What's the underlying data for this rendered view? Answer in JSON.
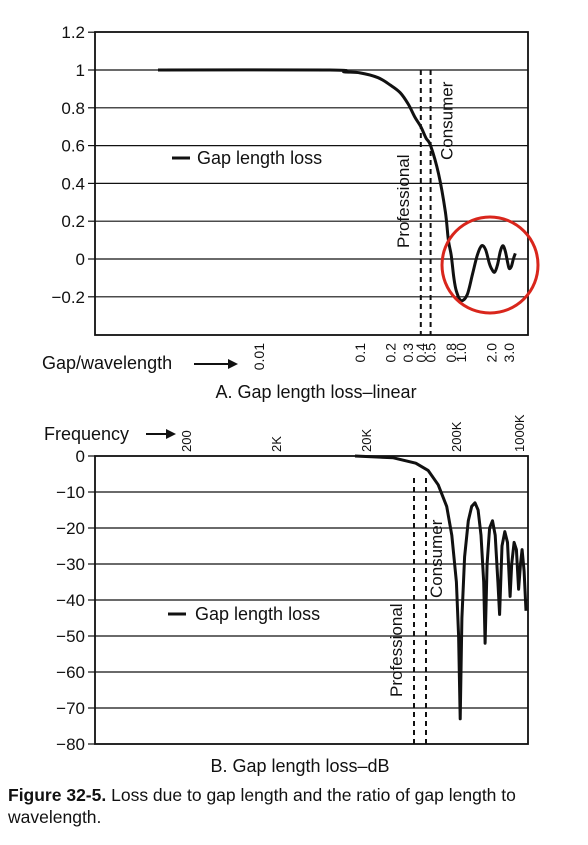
{
  "chart_data": [
    {
      "type": "line",
      "title": "",
      "subtitle": "A. Gap length loss–linear",
      "xlabel": "Gap/wavelength",
      "ylabel": "",
      "x_scale": "log",
      "x_ticks": [
        "0.01",
        "0.1",
        "0.2",
        "0.3",
        "0.4",
        "0.5",
        "0.8",
        "1.0",
        "2.0",
        "3.0"
      ],
      "y_ticks": [
        "1.2",
        "1",
        "0.8",
        "0.6",
        "0.4",
        "0.2",
        "0",
        "−0.2"
      ],
      "ylim": [
        -0.4,
        1.2
      ],
      "grid": "horizontal",
      "legend": "center-left",
      "series": [
        {
          "name": "Gap length loss",
          "points": [
            [
              0.001,
              1.0
            ],
            [
              0.05,
              1.0
            ],
            [
              0.07,
              0.99
            ],
            [
              0.1,
              0.985
            ],
            [
              0.15,
              0.96
            ],
            [
              0.2,
              0.92
            ],
            [
              0.25,
              0.88
            ],
            [
              0.3,
              0.82
            ],
            [
              0.35,
              0.75
            ],
            [
              0.4,
              0.7
            ],
            [
              0.45,
              0.64
            ],
            [
              0.5,
              0.6
            ],
            [
              0.6,
              0.45
            ],
            [
              0.7,
              0.25
            ],
            [
              0.75,
              0.1
            ],
            [
              0.8,
              0.02
            ],
            [
              0.85,
              -0.1
            ],
            [
              0.9,
              -0.17
            ],
            [
              1.0,
              -0.22
            ],
            [
              1.15,
              -0.19
            ],
            [
              1.3,
              -0.08
            ],
            [
              1.45,
              0.02
            ],
            [
              1.6,
              0.07
            ],
            [
              1.75,
              0.05
            ],
            [
              1.9,
              -0.02
            ],
            [
              2.0,
              -0.05
            ],
            [
              2.15,
              -0.07
            ],
            [
              2.3,
              -0.03
            ],
            [
              2.45,
              0.04
            ],
            [
              2.6,
              0.07
            ],
            [
              2.75,
              0.04
            ],
            [
              2.9,
              -0.02
            ],
            [
              3.0,
              -0.05
            ],
            [
              3.15,
              -0.04
            ],
            [
              3.3,
              0.0
            ],
            [
              3.45,
              0.03
            ]
          ]
        }
      ],
      "reference_lines": [
        {
          "label": "Professional",
          "x": 0.4
        },
        {
          "label": "Consumer",
          "x": 0.5
        }
      ],
      "annotation": "red circle around the oscillating tail beyond gap/wavelength 1.0",
      "annotation_color": "#d9261c"
    },
    {
      "type": "line",
      "title": "",
      "subtitle": "B. Gap length loss–dB",
      "xlabel": "Frequency",
      "ylabel": "",
      "x_scale": "log",
      "x_ticks": [
        "200",
        "2K",
        "20K",
        "200K",
        "1000K"
      ],
      "y_ticks": [
        "0",
        "−10",
        "−20",
        "−30",
        "−40",
        "−50",
        "−60",
        "−70",
        "−80"
      ],
      "ylim": [
        -80,
        0
      ],
      "grid": "horizontal",
      "legend": "center-left",
      "series": [
        {
          "name": "Gap length loss",
          "points": [
            [
              20000,
              0
            ],
            [
              40000,
              -0.5
            ],
            [
              60000,
              -2
            ],
            [
              75000,
              -4
            ],
            [
              90000,
              -8
            ],
            [
              105000,
              -14
            ],
            [
              115000,
              -22
            ],
            [
              125000,
              -35
            ],
            [
              130000,
              -50
            ],
            [
              134000,
              -73
            ],
            [
              138000,
              -45
            ],
            [
              145000,
              -28
            ],
            [
              155000,
              -18
            ],
            [
              165000,
              -14
            ],
            [
              175000,
              -13
            ],
            [
              185000,
              -15
            ],
            [
              195000,
              -22
            ],
            [
              205000,
              -35
            ],
            [
              210000,
              -52
            ],
            [
              218000,
              -30
            ],
            [
              228000,
              -20
            ],
            [
              240000,
              -18
            ],
            [
              252000,
              -22
            ],
            [
              265000,
              -35
            ],
            [
              273000,
              -44
            ],
            [
              285000,
              -25
            ],
            [
              300000,
              -21
            ],
            [
              315000,
              -24
            ],
            [
              330000,
              -39
            ],
            [
              340000,
              -30
            ],
            [
              355000,
              -24
            ],
            [
              370000,
              -26
            ],
            [
              385000,
              -37
            ],
            [
              398000,
              -30
            ],
            [
              410000,
              -26
            ],
            [
              425000,
              -32
            ],
            [
              440000,
              -43
            ]
          ]
        }
      ],
      "reference_lines": [
        {
          "label": "Professional",
          "x": 70000
        },
        {
          "label": "Consumer",
          "x": 85000
        }
      ]
    }
  ],
  "caption": {
    "figure_label": "Figure 32-5.",
    "text": "Loss due to gap length and the ratio of gap length to wavelength."
  }
}
